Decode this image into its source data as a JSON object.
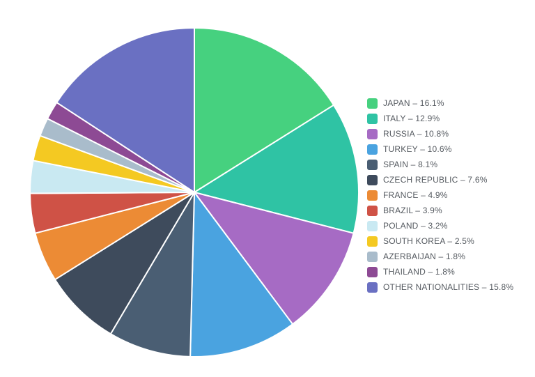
{
  "chart_data": {
    "type": "pie",
    "title": "",
    "legend_position": "right",
    "slices": [
      {
        "label": "JAPAN",
        "value": 16.1,
        "legend_text": "JAPAN – 16.1%",
        "color": "#46d17f"
      },
      {
        "label": "ITALY",
        "value": 12.9,
        "legend_text": "ITALY – 12.9%",
        "color": "#2fc3a4"
      },
      {
        "label": "RUSSIA",
        "value": 10.8,
        "legend_text": "RUSSIA – 10.8%",
        "color": "#a66bc4"
      },
      {
        "label": "TURKEY",
        "value": 10.6,
        "legend_text": "TURKEY – 10.6%",
        "color": "#4aa3e0"
      },
      {
        "label": "SPAIN",
        "value": 8.1,
        "legend_text": "SPAIN – 8.1%",
        "color": "#4a5e73"
      },
      {
        "label": "CZECH REPUBLIC",
        "value": 7.6,
        "legend_text": "CZECH REPUBLIC – 7.6%",
        "color": "#3e4b5c"
      },
      {
        "label": "FRANCE",
        "value": 4.9,
        "legend_text": "FRANCE – 4.9%",
        "color": "#ec8b35"
      },
      {
        "label": "BRAZIL",
        "value": 3.9,
        "legend_text": "BRAZIL – 3.9%",
        "color": "#cf5246"
      },
      {
        "label": "POLAND",
        "value": 3.2,
        "legend_text": "POLAND – 3.2%",
        "color": "#c9e9f2"
      },
      {
        "label": "SOUTH KOREA",
        "value": 2.5,
        "legend_text": "SOUTH KOREA – 2.5%",
        "color": "#f4c922"
      },
      {
        "label": "AZERBAIJAN",
        "value": 1.8,
        "legend_text": "AZERBAIJAN – 1.8%",
        "color": "#a9bccb"
      },
      {
        "label": "THAILAND",
        "value": 1.8,
        "legend_text": "THAILAND – 1.8%",
        "color": "#8d4a94"
      },
      {
        "label": "OTHER NATIONALITIES",
        "value": 15.8,
        "legend_text": "OTHER NATIONALITIES – 15.8%",
        "color": "#6a70c2"
      }
    ]
  }
}
